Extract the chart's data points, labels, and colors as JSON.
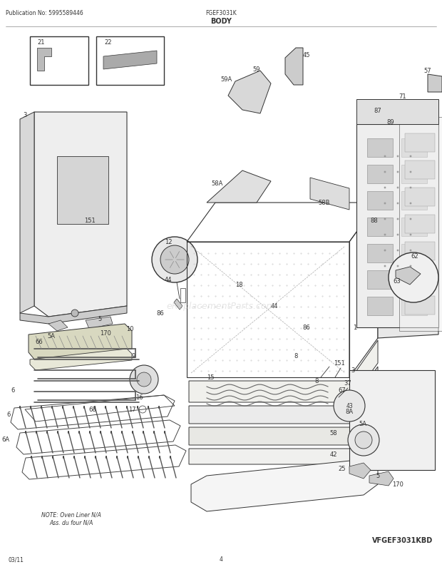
{
  "title": "BODY",
  "pub_no": "Publication No: 5995589446",
  "model": "FGEF3031K",
  "model_code": "VFGEF3031KBD",
  "date": "03/11",
  "page": "4",
  "note": "NOTE: Oven Liner N/A\nAss. du four N/A",
  "bg_color": "#ffffff",
  "lc": "#333333",
  "tc": "#333333",
  "watermark": "eReplacementParts.com",
  "figsize": [
    6.2,
    8.03
  ],
  "dpi": 100
}
